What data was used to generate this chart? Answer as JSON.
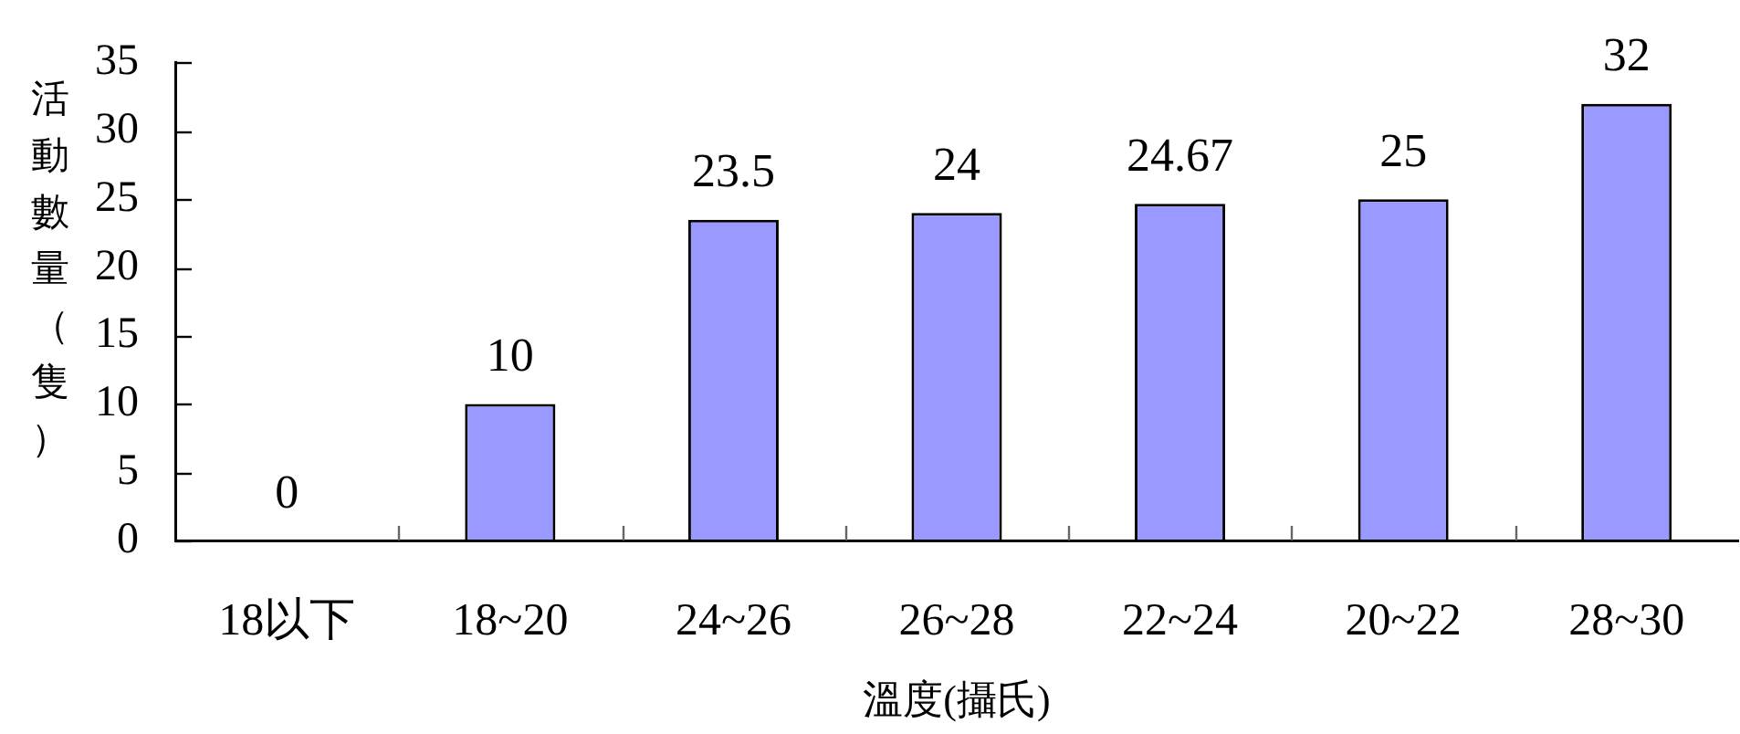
{
  "chart_data": {
    "type": "bar",
    "xlabel": "溫度(攝氏)",
    "ylabel": "活動數量（隻）",
    "categories": [
      "18以下",
      "18~20",
      "24~26",
      "26~28",
      "22~24",
      "20~22",
      "28~30"
    ],
    "values": [
      0,
      10,
      23.5,
      24,
      24.67,
      25,
      32
    ],
    "color": "#9999ff",
    "ylim": [
      0,
      35
    ],
    "yticks": [
      0,
      5,
      10,
      15,
      20,
      25,
      30,
      35
    ],
    "data_labels": true,
    "grid": false
  }
}
